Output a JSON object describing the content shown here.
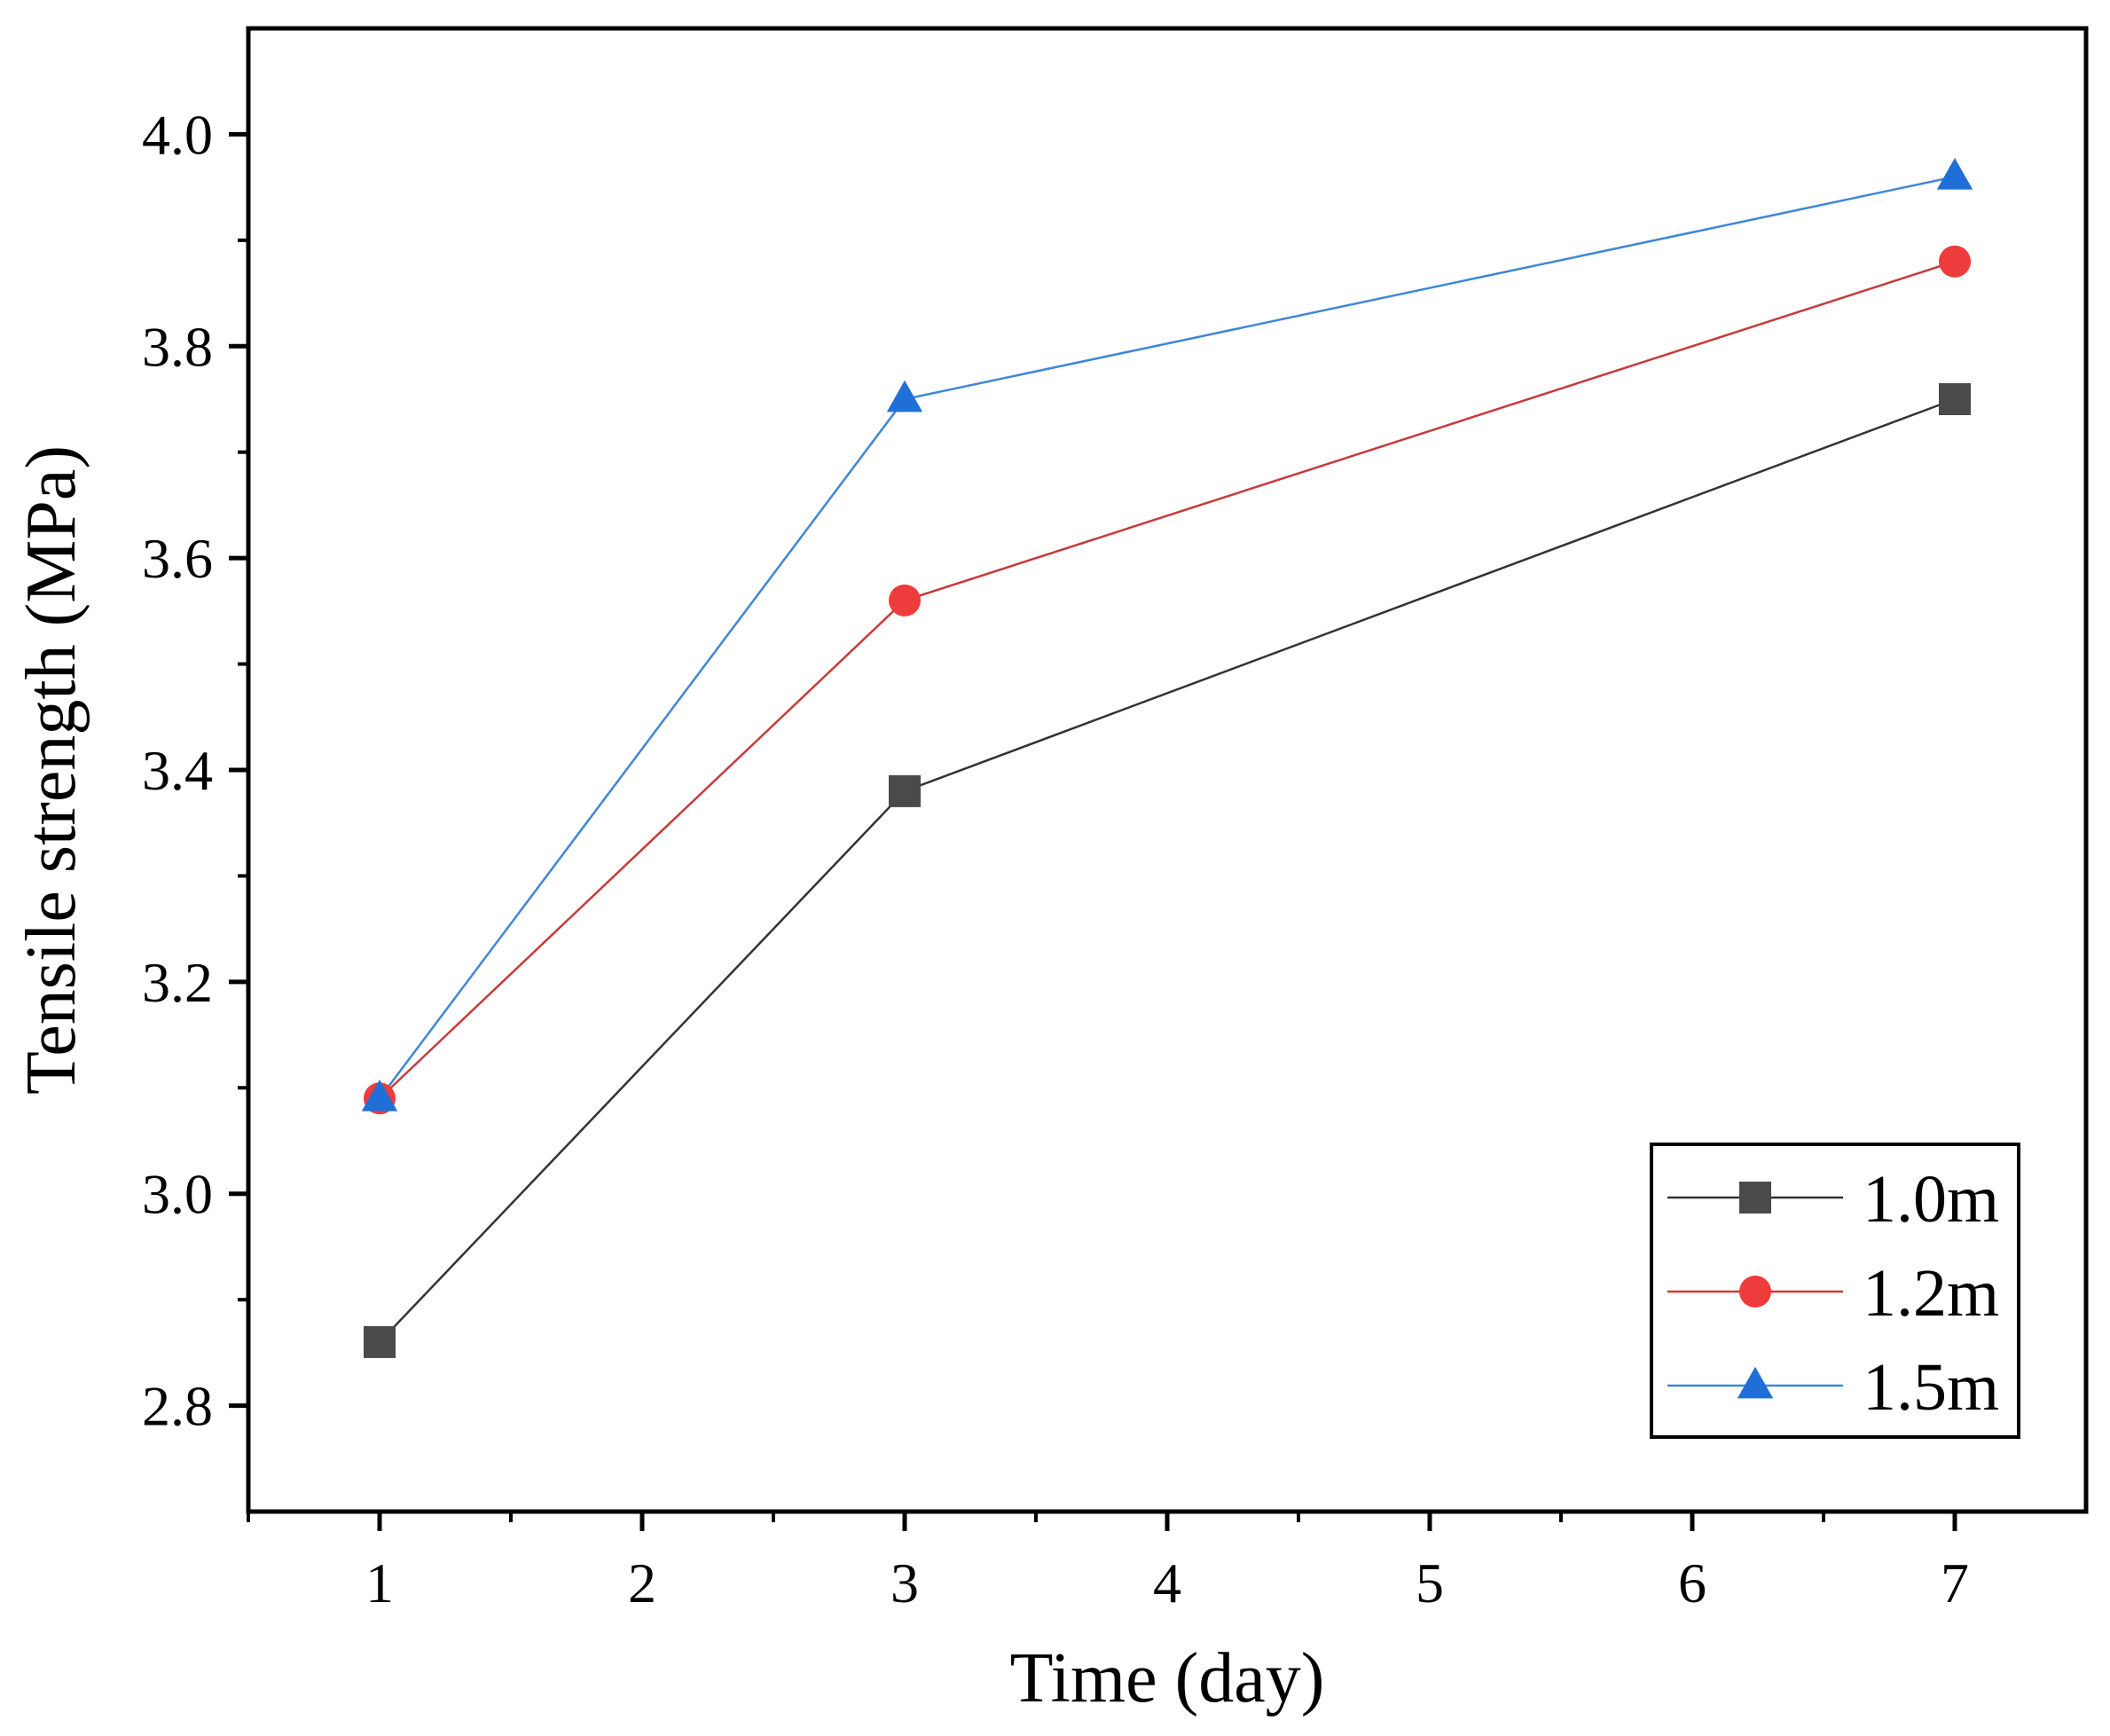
{
  "chart_data": {
    "type": "line",
    "title": "",
    "xlabel": "Time (day)",
    "ylabel": "Tensile strength (MPa)",
    "xlim": [
      0.5,
      7.5
    ],
    "ylim": [
      2.7,
      4.1
    ],
    "x_ticks": [
      1,
      2,
      3,
      4,
      5,
      6,
      7
    ],
    "x_tick_labels": [
      "1",
      "2",
      "3",
      "4",
      "5",
      "6",
      "7"
    ],
    "y_ticks": [
      2.8,
      3.0,
      3.2,
      3.4,
      3.6,
      3.8,
      4.0
    ],
    "y_tick_labels": [
      "2.8",
      "3.0",
      "3.2",
      "3.4",
      "3.6",
      "3.8",
      "4.0"
    ],
    "grid": false,
    "legend_position": "bottom-right",
    "series": [
      {
        "name": "1.0m",
        "x": [
          1,
          3,
          7
        ],
        "values": [
          2.86,
          3.38,
          3.75
        ],
        "color": "#4a4a4a",
        "line_color": "#333333",
        "marker": "square"
      },
      {
        "name": "1.2m",
        "x": [
          1,
          3,
          7
        ],
        "values": [
          3.09,
          3.56,
          3.88
        ],
        "color": "#ee3b3b",
        "line_color": "#c83a3a",
        "marker": "circle"
      },
      {
        "name": "1.5m",
        "x": [
          1,
          3,
          7
        ],
        "values": [
          3.09,
          3.75,
          3.96
        ],
        "color": "#1f6fd6",
        "line_color": "#3f86d8",
        "marker": "triangle"
      }
    ]
  }
}
